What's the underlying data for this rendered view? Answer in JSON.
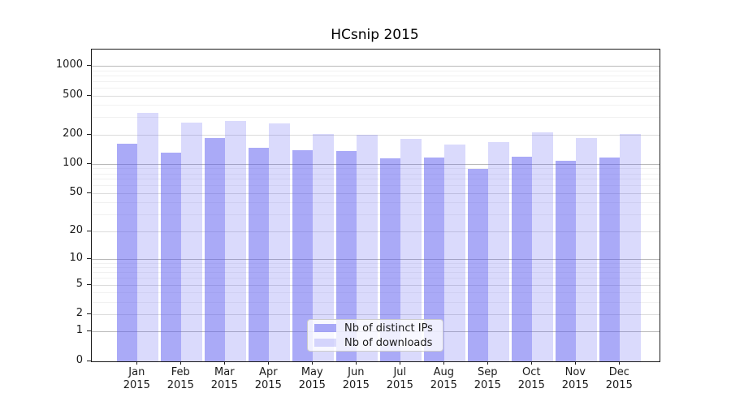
{
  "chart_data": {
    "type": "bar",
    "title": "HCsnip 2015",
    "months": [
      "Jan",
      "Feb",
      "Mar",
      "Apr",
      "May",
      "Jun",
      "Jul",
      "Aug",
      "Sep",
      "Oct",
      "Nov",
      "Dec"
    ],
    "x_year_label": "2015",
    "series": [
      {
        "name": "Nb of distinct IPs",
        "color": "rgba(85,85,240,0.50)",
        "values": [
          160,
          130,
          185,
          146,
          138,
          136,
          113,
          116,
          89,
          119,
          108,
          116
        ]
      },
      {
        "name": "Nb of downloads",
        "color": "rgba(85,85,240,0.22)",
        "values": [
          335,
          262,
          274,
          258,
          204,
          199,
          179,
          159,
          166,
          211,
          184,
          202
        ]
      }
    ],
    "yticks": [
      {
        "label": "0",
        "value": 0
      },
      {
        "label": "1",
        "value": 1
      },
      {
        "label": "2",
        "value": 2
      },
      {
        "label": "5",
        "value": 5
      },
      {
        "label": "10",
        "value": 10
      },
      {
        "label": "20",
        "value": 20
      },
      {
        "label": "50",
        "value": 50
      },
      {
        "label": "100",
        "value": 100
      },
      {
        "label": "200",
        "value": 200
      },
      {
        "label": "500",
        "value": 500
      },
      {
        "label": "1000",
        "value": 1000
      }
    ],
    "yscale": "log10(value+1), 0 at baseline",
    "ylim": [
      0,
      1460
    ],
    "grid": true,
    "legend_position": "lower center",
    "colors": {
      "spine": "#1a1a1a",
      "grid_major_decade": "#b9b9b9",
      "grid_major": "#dcdcdc",
      "grid_minor": "#f1f1f1",
      "background": "#ffffff"
    }
  }
}
